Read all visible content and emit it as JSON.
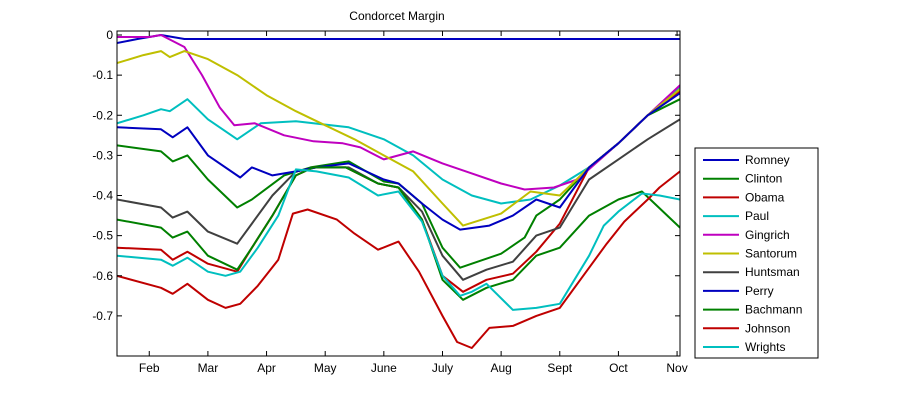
{
  "chart_data": {
    "type": "line",
    "title": "Condorcet Margin",
    "xlabel": "",
    "ylabel": "",
    "xlim": [
      0.45,
      10.05
    ],
    "ylim": [
      -0.8,
      0.01
    ],
    "x_ticks": [
      1,
      2,
      3,
      4,
      5,
      6,
      7,
      8,
      9,
      10
    ],
    "x_tick_labels": [
      "Feb",
      "Mar",
      "Apr",
      "May",
      "June",
      "July",
      "Aug",
      "Sept",
      "Oct",
      "Nov"
    ],
    "y_ticks": [
      0,
      -0.1,
      -0.2,
      -0.3,
      -0.4,
      -0.5,
      -0.6,
      -0.7
    ],
    "y_tick_labels": [
      "0",
      "-0.1",
      "-0.2",
      "-0.3",
      "-0.4",
      "-0.5",
      "-0.6",
      "-0.7"
    ],
    "grid": false,
    "legend_position": "outside-right",
    "series": [
      {
        "name": "Romney",
        "color": "#0000bf",
        "points": [
          [
            0.45,
            -0.02
          ],
          [
            0.8,
            -0.01
          ],
          [
            1.2,
            0.0
          ],
          [
            1.6,
            -0.01
          ],
          [
            2,
            -0.01
          ],
          [
            2.5,
            -0.01
          ],
          [
            3,
            -0.01
          ],
          [
            4,
            -0.01
          ],
          [
            5,
            -0.01
          ],
          [
            6,
            -0.01
          ],
          [
            7,
            -0.01
          ],
          [
            8,
            -0.01
          ],
          [
            9,
            -0.01
          ],
          [
            10.05,
            -0.01
          ]
        ]
      },
      {
        "name": "Clinton",
        "color": "#008000",
        "points": [
          [
            0.45,
            -0.275
          ],
          [
            1.2,
            -0.29
          ],
          [
            1.4,
            -0.315
          ],
          [
            1.65,
            -0.3
          ],
          [
            2.0,
            -0.36
          ],
          [
            2.5,
            -0.43
          ],
          [
            2.75,
            -0.41
          ],
          [
            3.3,
            -0.35
          ],
          [
            3.75,
            -0.33
          ],
          [
            4.4,
            -0.315
          ],
          [
            5.0,
            -0.365
          ],
          [
            5.25,
            -0.37
          ],
          [
            5.65,
            -0.42
          ],
          [
            6.0,
            -0.53
          ],
          [
            6.3,
            -0.58
          ],
          [
            6.5,
            -0.57
          ],
          [
            7.0,
            -0.545
          ],
          [
            7.4,
            -0.505
          ],
          [
            7.6,
            -0.45
          ],
          [
            8.0,
            -0.41
          ],
          [
            8.5,
            -0.33
          ],
          [
            9.0,
            -0.27
          ],
          [
            9.5,
            -0.2
          ],
          [
            10.05,
            -0.16
          ]
        ]
      },
      {
        "name": "Obama",
        "color": "#bf0000",
        "points": [
          [
            0.45,
            -0.53
          ],
          [
            1.2,
            -0.535
          ],
          [
            1.4,
            -0.56
          ],
          [
            1.65,
            -0.54
          ],
          [
            2.0,
            -0.57
          ],
          [
            2.5,
            -0.59
          ],
          [
            2.75,
            -0.53
          ],
          [
            3.1,
            -0.45
          ],
          [
            3.5,
            -0.35
          ],
          [
            3.8,
            -0.33
          ],
          [
            4.35,
            -0.33
          ],
          [
            4.9,
            -0.37
          ],
          [
            5.25,
            -0.38
          ],
          [
            5.65,
            -0.46
          ],
          [
            6.0,
            -0.6
          ],
          [
            6.35,
            -0.64
          ],
          [
            6.75,
            -0.61
          ],
          [
            7.2,
            -0.595
          ],
          [
            7.6,
            -0.54
          ],
          [
            8.0,
            -0.47
          ],
          [
            8.5,
            -0.33
          ],
          [
            9.0,
            -0.27
          ],
          [
            9.5,
            -0.2
          ],
          [
            10.05,
            -0.14
          ]
        ]
      },
      {
        "name": "Paul",
        "color": "#00bfbf",
        "points": [
          [
            0.45,
            -0.22
          ],
          [
            0.9,
            -0.2
          ],
          [
            1.2,
            -0.185
          ],
          [
            1.35,
            -0.19
          ],
          [
            1.65,
            -0.16
          ],
          [
            2.0,
            -0.21
          ],
          [
            2.5,
            -0.26
          ],
          [
            2.9,
            -0.22
          ],
          [
            3.5,
            -0.215
          ],
          [
            4.4,
            -0.23
          ],
          [
            5.0,
            -0.26
          ],
          [
            5.5,
            -0.3
          ],
          [
            6.0,
            -0.36
          ],
          [
            6.5,
            -0.4
          ],
          [
            7.0,
            -0.42
          ],
          [
            7.5,
            -0.41
          ],
          [
            8.0,
            -0.375
          ],
          [
            8.5,
            -0.33
          ],
          [
            9.0,
            -0.27
          ],
          [
            9.5,
            -0.2
          ],
          [
            10.05,
            -0.13
          ]
        ]
      },
      {
        "name": "Gingrich",
        "color": "#bf00bf",
        "points": [
          [
            0.45,
            -0.005
          ],
          [
            1.0,
            -0.005
          ],
          [
            1.2,
            0.0
          ],
          [
            1.6,
            -0.03
          ],
          [
            1.9,
            -0.1
          ],
          [
            2.2,
            -0.18
          ],
          [
            2.45,
            -0.225
          ],
          [
            2.8,
            -0.22
          ],
          [
            3.3,
            -0.25
          ],
          [
            3.8,
            -0.265
          ],
          [
            4.3,
            -0.27
          ],
          [
            4.6,
            -0.28
          ],
          [
            5.0,
            -0.31
          ],
          [
            5.5,
            -0.29
          ],
          [
            6.0,
            -0.32
          ],
          [
            6.5,
            -0.345
          ],
          [
            7.0,
            -0.37
          ],
          [
            7.4,
            -0.385
          ],
          [
            7.9,
            -0.38
          ],
          [
            8.3,
            -0.36
          ],
          [
            9.0,
            -0.27
          ],
          [
            9.5,
            -0.2
          ],
          [
            10.05,
            -0.125
          ]
        ]
      },
      {
        "name": "Santorum",
        "color": "#bfbf00",
        "points": [
          [
            0.45,
            -0.07
          ],
          [
            0.9,
            -0.05
          ],
          [
            1.2,
            -0.04
          ],
          [
            1.35,
            -0.055
          ],
          [
            1.6,
            -0.04
          ],
          [
            2.0,
            -0.06
          ],
          [
            2.5,
            -0.1
          ],
          [
            3.0,
            -0.15
          ],
          [
            3.5,
            -0.19
          ],
          [
            4.0,
            -0.225
          ],
          [
            4.5,
            -0.26
          ],
          [
            5.0,
            -0.3
          ],
          [
            5.5,
            -0.34
          ],
          [
            6.0,
            -0.42
          ],
          [
            6.35,
            -0.475
          ],
          [
            7.0,
            -0.445
          ],
          [
            7.5,
            -0.39
          ],
          [
            8.0,
            -0.4
          ],
          [
            8.5,
            -0.33
          ],
          [
            9.0,
            -0.27
          ],
          [
            9.5,
            -0.2
          ],
          [
            10.05,
            -0.135
          ]
        ]
      },
      {
        "name": "Huntsman",
        "color": "#404040",
        "points": [
          [
            0.45,
            -0.41
          ],
          [
            1.2,
            -0.43
          ],
          [
            1.4,
            -0.455
          ],
          [
            1.65,
            -0.44
          ],
          [
            2.0,
            -0.49
          ],
          [
            2.5,
            -0.52
          ],
          [
            2.75,
            -0.47
          ],
          [
            3.1,
            -0.4
          ],
          [
            3.5,
            -0.34
          ],
          [
            3.85,
            -0.33
          ],
          [
            4.4,
            -0.33
          ],
          [
            4.9,
            -0.37
          ],
          [
            5.25,
            -0.38
          ],
          [
            5.65,
            -0.44
          ],
          [
            6.0,
            -0.55
          ],
          [
            6.35,
            -0.61
          ],
          [
            6.75,
            -0.585
          ],
          [
            7.2,
            -0.565
          ],
          [
            7.6,
            -0.5
          ],
          [
            8.0,
            -0.48
          ],
          [
            8.5,
            -0.36
          ],
          [
            9.0,
            -0.31
          ],
          [
            9.5,
            -0.26
          ],
          [
            10.05,
            -0.21
          ]
        ]
      },
      {
        "name": "Perry",
        "color": "#0000bf",
        "points": [
          [
            0.45,
            -0.23
          ],
          [
            1.2,
            -0.235
          ],
          [
            1.4,
            -0.255
          ],
          [
            1.65,
            -0.23
          ],
          [
            2.0,
            -0.3
          ],
          [
            2.55,
            -0.355
          ],
          [
            2.75,
            -0.33
          ],
          [
            3.1,
            -0.35
          ],
          [
            3.5,
            -0.34
          ],
          [
            3.85,
            -0.33
          ],
          [
            4.4,
            -0.32
          ],
          [
            5.0,
            -0.36
          ],
          [
            5.25,
            -0.37
          ],
          [
            5.65,
            -0.42
          ],
          [
            6.0,
            -0.46
          ],
          [
            6.3,
            -0.485
          ],
          [
            6.8,
            -0.475
          ],
          [
            7.2,
            -0.45
          ],
          [
            7.6,
            -0.41
          ],
          [
            8.0,
            -0.43
          ],
          [
            8.5,
            -0.33
          ],
          [
            9.0,
            -0.27
          ],
          [
            9.5,
            -0.2
          ],
          [
            10.05,
            -0.145
          ]
        ]
      },
      {
        "name": "Bachmann",
        "color": "#008000",
        "points": [
          [
            0.45,
            -0.46
          ],
          [
            1.2,
            -0.48
          ],
          [
            1.4,
            -0.505
          ],
          [
            1.65,
            -0.49
          ],
          [
            2.0,
            -0.55
          ],
          [
            2.5,
            -0.585
          ],
          [
            2.75,
            -0.53
          ],
          [
            3.1,
            -0.45
          ],
          [
            3.5,
            -0.35
          ],
          [
            3.8,
            -0.33
          ],
          [
            4.35,
            -0.33
          ],
          [
            4.9,
            -0.37
          ],
          [
            5.25,
            -0.38
          ],
          [
            5.65,
            -0.46
          ],
          [
            6.0,
            -0.61
          ],
          [
            6.35,
            -0.66
          ],
          [
            6.75,
            -0.63
          ],
          [
            7.2,
            -0.61
          ],
          [
            7.6,
            -0.55
          ],
          [
            8.0,
            -0.53
          ],
          [
            8.5,
            -0.45
          ],
          [
            9.0,
            -0.41
          ],
          [
            9.4,
            -0.39
          ],
          [
            10.05,
            -0.48
          ]
        ]
      },
      {
        "name": "Johnson",
        "color": "#bf0000",
        "points": [
          [
            0.45,
            -0.6
          ],
          [
            1.2,
            -0.63
          ],
          [
            1.4,
            -0.645
          ],
          [
            1.65,
            -0.62
          ],
          [
            2.0,
            -0.66
          ],
          [
            2.3,
            -0.68
          ],
          [
            2.55,
            -0.67
          ],
          [
            2.85,
            -0.625
          ],
          [
            3.2,
            -0.56
          ],
          [
            3.45,
            -0.445
          ],
          [
            3.7,
            -0.435
          ],
          [
            4.2,
            -0.46
          ],
          [
            4.5,
            -0.495
          ],
          [
            4.9,
            -0.535
          ],
          [
            5.25,
            -0.515
          ],
          [
            5.6,
            -0.59
          ],
          [
            6.0,
            -0.7
          ],
          [
            6.25,
            -0.765
          ],
          [
            6.5,
            -0.78
          ],
          [
            6.8,
            -0.73
          ],
          [
            7.2,
            -0.725
          ],
          [
            7.6,
            -0.7
          ],
          [
            8.0,
            -0.68
          ],
          [
            8.4,
            -0.6
          ],
          [
            8.8,
            -0.52
          ],
          [
            9.1,
            -0.465
          ],
          [
            9.5,
            -0.41
          ],
          [
            9.7,
            -0.38
          ],
          [
            10.05,
            -0.34
          ]
        ]
      },
      {
        "name": "Wrights",
        "color": "#00bfbf",
        "points": [
          [
            0.45,
            -0.55
          ],
          [
            1.2,
            -0.56
          ],
          [
            1.4,
            -0.575
          ],
          [
            1.65,
            -0.555
          ],
          [
            2.0,
            -0.59
          ],
          [
            2.3,
            -0.6
          ],
          [
            2.55,
            -0.59
          ],
          [
            2.85,
            -0.53
          ],
          [
            3.2,
            -0.45
          ],
          [
            3.5,
            -0.335
          ],
          [
            3.85,
            -0.34
          ],
          [
            4.4,
            -0.355
          ],
          [
            4.9,
            -0.4
          ],
          [
            5.25,
            -0.39
          ],
          [
            5.65,
            -0.465
          ],
          [
            6.0,
            -0.6
          ],
          [
            6.3,
            -0.65
          ],
          [
            6.5,
            -0.64
          ],
          [
            6.75,
            -0.62
          ],
          [
            7.2,
            -0.685
          ],
          [
            7.6,
            -0.68
          ],
          [
            8.0,
            -0.67
          ],
          [
            8.5,
            -0.55
          ],
          [
            8.75,
            -0.475
          ],
          [
            9.0,
            -0.44
          ],
          [
            9.4,
            -0.395
          ],
          [
            9.7,
            -0.4
          ],
          [
            10.05,
            -0.41
          ]
        ]
      }
    ]
  }
}
